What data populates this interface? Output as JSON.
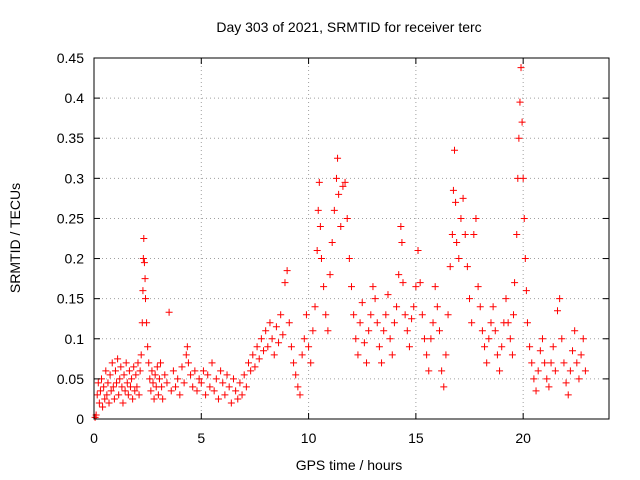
{
  "chart_data": {
    "type": "scatter",
    "title": "Day 303 of 2021, SRMTID for receiver terc",
    "xlabel": "GPS time / hours",
    "ylabel": "SRMTID / TECUs",
    "xlim": [
      0,
      24
    ],
    "ylim": [
      0,
      0.45
    ],
    "xticks": [
      0,
      5,
      10,
      15,
      20
    ],
    "yticks": [
      0,
      0.05,
      0.1,
      0.15,
      0.2,
      0.25,
      0.3,
      0.35,
      0.4,
      0.45
    ],
    "xtick_labels": [
      "0",
      "5",
      "10",
      "15",
      "20"
    ],
    "ytick_labels": [
      "0",
      "0.05",
      "0.1",
      "0.15",
      "0.2",
      "0.25",
      "0.3",
      "0.35",
      "0.4",
      "0.45"
    ],
    "grid": true,
    "marker": "+",
    "color": "#ff0000",
    "series": [
      {
        "name": "SRMTID",
        "points": [
          [
            0.05,
            0.002
          ],
          [
            0.1,
            0.005
          ],
          [
            0.15,
            0.03
          ],
          [
            0.2,
            0.045
          ],
          [
            0.25,
            0.02
          ],
          [
            0.3,
            0.035
          ],
          [
            0.35,
            0.05
          ],
          [
            0.4,
            0.015
          ],
          [
            0.45,
            0.04
          ],
          [
            0.5,
            0.025
          ],
          [
            0.55,
            0.06
          ],
          [
            0.6,
            0.03
          ],
          [
            0.65,
            0.045
          ],
          [
            0.7,
            0.02
          ],
          [
            0.75,
            0.055
          ],
          [
            0.8,
            0.035
          ],
          [
            0.85,
            0.07
          ],
          [
            0.9,
            0.04
          ],
          [
            0.95,
            0.025
          ],
          [
            1.0,
            0.06
          ],
          [
            1.05,
            0.045
          ],
          [
            1.1,
            0.075
          ],
          [
            1.15,
            0.03
          ],
          [
            1.2,
            0.05
          ],
          [
            1.25,
            0.065
          ],
          [
            1.3,
            0.04
          ],
          [
            1.35,
            0.02
          ],
          [
            1.4,
            0.055
          ],
          [
            1.45,
            0.035
          ],
          [
            1.5,
            0.07
          ],
          [
            1.55,
            0.045
          ],
          [
            1.6,
            0.03
          ],
          [
            1.65,
            0.06
          ],
          [
            1.7,
            0.04
          ],
          [
            1.75,
            0.05
          ],
          [
            1.8,
            0.025
          ],
          [
            1.85,
            0.065
          ],
          [
            1.9,
            0.035
          ],
          [
            1.95,
            0.055
          ],
          [
            2.0,
            0.04
          ],
          [
            2.05,
            0.07
          ],
          [
            2.1,
            0.03
          ],
          [
            2.15,
            0.06
          ],
          [
            2.2,
            0.08
          ],
          [
            2.25,
            0.12
          ],
          [
            2.28,
            0.16
          ],
          [
            2.3,
            0.2
          ],
          [
            2.32,
            0.225
          ],
          [
            2.35,
            0.195
          ],
          [
            2.38,
            0.175
          ],
          [
            2.4,
            0.15
          ],
          [
            2.45,
            0.12
          ],
          [
            2.5,
            0.09
          ],
          [
            2.55,
            0.07
          ],
          [
            2.6,
            0.05
          ],
          [
            2.65,
            0.035
          ],
          [
            2.7,
            0.06
          ],
          [
            2.75,
            0.045
          ],
          [
            2.8,
            0.025
          ],
          [
            2.85,
            0.055
          ],
          [
            2.9,
            0.04
          ],
          [
            2.95,
            0.065
          ],
          [
            3.0,
            0.03
          ],
          [
            3.05,
            0.05
          ],
          [
            3.1,
            0.07
          ],
          [
            3.15,
            0.04
          ],
          [
            3.2,
            0.025
          ],
          [
            3.3,
            0.055
          ],
          [
            3.4,
            0.045
          ],
          [
            3.5,
            0.133
          ],
          [
            3.6,
            0.035
          ],
          [
            3.7,
            0.06
          ],
          [
            3.8,
            0.04
          ],
          [
            3.9,
            0.05
          ],
          [
            4.0,
            0.03
          ],
          [
            4.1,
            0.065
          ],
          [
            4.2,
            0.045
          ],
          [
            4.3,
            0.08
          ],
          [
            4.35,
            0.09
          ],
          [
            4.4,
            0.07
          ],
          [
            4.5,
            0.055
          ],
          [
            4.6,
            0.04
          ],
          [
            4.7,
            0.06
          ],
          [
            4.8,
            0.035
          ],
          [
            4.9,
            0.05
          ],
          [
            5.0,
            0.045
          ],
          [
            5.1,
            0.06
          ],
          [
            5.2,
            0.03
          ],
          [
            5.3,
            0.055
          ],
          [
            5.4,
            0.04
          ],
          [
            5.5,
            0.07
          ],
          [
            5.6,
            0.035
          ],
          [
            5.7,
            0.05
          ],
          [
            5.8,
            0.025
          ],
          [
            5.9,
            0.06
          ],
          [
            6.0,
            0.045
          ],
          [
            6.1,
            0.03
          ],
          [
            6.2,
            0.055
          ],
          [
            6.3,
            0.04
          ],
          [
            6.4,
            0.02
          ],
          [
            6.5,
            0.05
          ],
          [
            6.6,
            0.035
          ],
          [
            6.7,
            0.025
          ],
          [
            6.8,
            0.045
          ],
          [
            6.9,
            0.03
          ],
          [
            7.0,
            0.055
          ],
          [
            7.1,
            0.04
          ],
          [
            7.2,
            0.07
          ],
          [
            7.3,
            0.06
          ],
          [
            7.4,
            0.08
          ],
          [
            7.5,
            0.065
          ],
          [
            7.6,
            0.09
          ],
          [
            7.7,
            0.075
          ],
          [
            7.8,
            0.1
          ],
          [
            7.9,
            0.085
          ],
          [
            8.0,
            0.11
          ],
          [
            8.1,
            0.09
          ],
          [
            8.2,
            0.12
          ],
          [
            8.3,
            0.1
          ],
          [
            8.4,
            0.08
          ],
          [
            8.5,
            0.115
          ],
          [
            8.6,
            0.095
          ],
          [
            8.7,
            0.13
          ],
          [
            8.8,
            0.105
          ],
          [
            8.9,
            0.17
          ],
          [
            9.0,
            0.185
          ],
          [
            9.1,
            0.12
          ],
          [
            9.2,
            0.09
          ],
          [
            9.3,
            0.07
          ],
          [
            9.4,
            0.055
          ],
          [
            9.5,
            0.04
          ],
          [
            9.6,
            0.03
          ],
          [
            9.7,
            0.08
          ],
          [
            9.8,
            0.1
          ],
          [
            9.9,
            0.13
          ],
          [
            10.0,
            0.09
          ],
          [
            10.1,
            0.07
          ],
          [
            10.2,
            0.11
          ],
          [
            10.3,
            0.14
          ],
          [
            10.4,
            0.21
          ],
          [
            10.45,
            0.26
          ],
          [
            10.5,
            0.295
          ],
          [
            10.55,
            0.24
          ],
          [
            10.6,
            0.2
          ],
          [
            10.7,
            0.165
          ],
          [
            10.8,
            0.13
          ],
          [
            10.9,
            0.11
          ],
          [
            11.0,
            0.18
          ],
          [
            11.1,
            0.22
          ],
          [
            11.2,
            0.26
          ],
          [
            11.3,
            0.3
          ],
          [
            11.35,
            0.325
          ],
          [
            11.4,
            0.28
          ],
          [
            11.5,
            0.24
          ],
          [
            11.6,
            0.29
          ],
          [
            11.7,
            0.295
          ],
          [
            11.8,
            0.25
          ],
          [
            11.9,
            0.2
          ],
          [
            12.0,
            0.165
          ],
          [
            12.1,
            0.13
          ],
          [
            12.2,
            0.1
          ],
          [
            12.3,
            0.08
          ],
          [
            12.4,
            0.12
          ],
          [
            12.5,
            0.145
          ],
          [
            12.6,
            0.095
          ],
          [
            12.7,
            0.07
          ],
          [
            12.8,
            0.11
          ],
          [
            12.9,
            0.13
          ],
          [
            13.0,
            0.165
          ],
          [
            13.1,
            0.15
          ],
          [
            13.2,
            0.12
          ],
          [
            13.3,
            0.09
          ],
          [
            13.4,
            0.07
          ],
          [
            13.5,
            0.11
          ],
          [
            13.6,
            0.13
          ],
          [
            13.7,
            0.155
          ],
          [
            13.8,
            0.1
          ],
          [
            13.9,
            0.08
          ],
          [
            14.0,
            0.12
          ],
          [
            14.1,
            0.14
          ],
          [
            14.2,
            0.18
          ],
          [
            14.3,
            0.24
          ],
          [
            14.35,
            0.22
          ],
          [
            14.4,
            0.17
          ],
          [
            14.5,
            0.13
          ],
          [
            14.6,
            0.11
          ],
          [
            14.7,
            0.09
          ],
          [
            14.8,
            0.125
          ],
          [
            14.9,
            0.14
          ],
          [
            15.0,
            0.165
          ],
          [
            15.1,
            0.21
          ],
          [
            15.2,
            0.17
          ],
          [
            15.3,
            0.13
          ],
          [
            15.4,
            0.1
          ],
          [
            15.5,
            0.08
          ],
          [
            15.6,
            0.06
          ],
          [
            15.7,
            0.1
          ],
          [
            15.8,
            0.12
          ],
          [
            15.9,
            0.165
          ],
          [
            16.0,
            0.14
          ],
          [
            16.1,
            0.11
          ],
          [
            16.2,
            0.06
          ],
          [
            16.3,
            0.04
          ],
          [
            16.4,
            0.08
          ],
          [
            16.5,
            0.13
          ],
          [
            16.6,
            0.19
          ],
          [
            16.7,
            0.23
          ],
          [
            16.75,
            0.285
          ],
          [
            16.8,
            0.335
          ],
          [
            16.85,
            0.27
          ],
          [
            16.9,
            0.22
          ],
          [
            17.0,
            0.2
          ],
          [
            17.1,
            0.25
          ],
          [
            17.2,
            0.275
          ],
          [
            17.3,
            0.23
          ],
          [
            17.4,
            0.19
          ],
          [
            17.5,
            0.15
          ],
          [
            17.6,
            0.12
          ],
          [
            17.7,
            0.23
          ],
          [
            17.8,
            0.25
          ],
          [
            17.9,
            0.165
          ],
          [
            18.0,
            0.14
          ],
          [
            18.1,
            0.11
          ],
          [
            18.2,
            0.09
          ],
          [
            18.3,
            0.07
          ],
          [
            18.4,
            0.1
          ],
          [
            18.5,
            0.12
          ],
          [
            18.6,
            0.14
          ],
          [
            18.7,
            0.11
          ],
          [
            18.8,
            0.08
          ],
          [
            18.9,
            0.06
          ],
          [
            19.0,
            0.09
          ],
          [
            19.1,
            0.12
          ],
          [
            19.2,
            0.15
          ],
          [
            19.3,
            0.12
          ],
          [
            19.4,
            0.1
          ],
          [
            19.5,
            0.08
          ],
          [
            19.55,
            0.13
          ],
          [
            19.6,
            0.17
          ],
          [
            19.7,
            0.23
          ],
          [
            19.75,
            0.3
          ],
          [
            19.8,
            0.35
          ],
          [
            19.85,
            0.395
          ],
          [
            19.9,
            0.438
          ],
          [
            19.95,
            0.37
          ],
          [
            20.0,
            0.3
          ],
          [
            20.05,
            0.25
          ],
          [
            20.1,
            0.2
          ],
          [
            20.15,
            0.16
          ],
          [
            20.2,
            0.12
          ],
          [
            20.3,
            0.09
          ],
          [
            20.4,
            0.07
          ],
          [
            20.5,
            0.05
          ],
          [
            20.6,
            0.035
          ],
          [
            20.7,
            0.06
          ],
          [
            20.8,
            0.085
          ],
          [
            20.9,
            0.1
          ],
          [
            21.0,
            0.07
          ],
          [
            21.1,
            0.05
          ],
          [
            21.2,
            0.04
          ],
          [
            21.3,
            0.07
          ],
          [
            21.4,
            0.09
          ],
          [
            21.5,
            0.06
          ],
          [
            21.6,
            0.135
          ],
          [
            21.7,
            0.15
          ],
          [
            21.8,
            0.1
          ],
          [
            21.9,
            0.07
          ],
          [
            22.0,
            0.045
          ],
          [
            22.1,
            0.03
          ],
          [
            22.2,
            0.06
          ],
          [
            22.3,
            0.085
          ],
          [
            22.4,
            0.11
          ],
          [
            22.5,
            0.07
          ],
          [
            22.6,
            0.05
          ],
          [
            22.7,
            0.08
          ],
          [
            22.8,
            0.1
          ],
          [
            22.9,
            0.06
          ]
        ]
      }
    ]
  }
}
